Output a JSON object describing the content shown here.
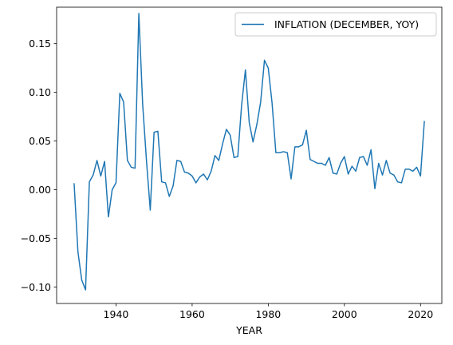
{
  "chart_data": {
    "type": "line",
    "xlabel": "YEAR",
    "ylabel": "",
    "title": "",
    "xlim": [
      1924.4,
      2025.6
    ],
    "ylim": [
      -0.117,
      0.1875
    ],
    "xticks": [
      1940,
      1960,
      1980,
      2000,
      2020
    ],
    "xtick_labels": [
      "1940",
      "1960",
      "1980",
      "2000",
      "2020"
    ],
    "yticks": [
      -0.1,
      -0.05,
      0.0,
      0.05,
      0.1,
      0.15
    ],
    "ytick_labels": [
      "−0.10",
      "−0.05",
      "0.00",
      "0.05",
      "0.10",
      "0.15"
    ],
    "grid": false,
    "legend_position": "top-right",
    "series": [
      {
        "name": "INFLATION (DECEMBER, YOY)",
        "color": "#1f77b4",
        "x": [
          1929,
          1930,
          1931,
          1932,
          1933,
          1934,
          1935,
          1936,
          1937,
          1938,
          1939,
          1940,
          1941,
          1942,
          1943,
          1944,
          1945,
          1946,
          1947,
          1948,
          1949,
          1950,
          1951,
          1952,
          1953,
          1954,
          1955,
          1956,
          1957,
          1958,
          1959,
          1960,
          1961,
          1962,
          1963,
          1964,
          1965,
          1966,
          1967,
          1968,
          1969,
          1970,
          1971,
          1972,
          1973,
          1974,
          1975,
          1976,
          1977,
          1978,
          1979,
          1980,
          1981,
          1982,
          1983,
          1984,
          1985,
          1986,
          1987,
          1988,
          1989,
          1990,
          1991,
          1992,
          1993,
          1994,
          1995,
          1996,
          1997,
          1998,
          1999,
          2000,
          2001,
          2002,
          2003,
          2004,
          2005,
          2006,
          2007,
          2008,
          2009,
          2010,
          2011,
          2012,
          2013,
          2014,
          2015,
          2016,
          2017,
          2018,
          2019,
          2020,
          2021
        ],
        "values": [
          0.006,
          -0.064,
          -0.093,
          -0.103,
          0.008,
          0.015,
          0.03,
          0.014,
          0.029,
          -0.028,
          0.0,
          0.007,
          0.099,
          0.09,
          0.03,
          0.023,
          0.022,
          0.181,
          0.088,
          0.03,
          -0.021,
          0.059,
          0.06,
          0.008,
          0.007,
          -0.007,
          0.004,
          0.03,
          0.029,
          0.018,
          0.017,
          0.014,
          0.007,
          0.013,
          0.016,
          0.01,
          0.019,
          0.035,
          0.03,
          0.047,
          0.062,
          0.056,
          0.033,
          0.034,
          0.087,
          0.123,
          0.069,
          0.049,
          0.067,
          0.09,
          0.133,
          0.125,
          0.089,
          0.038,
          0.038,
          0.039,
          0.038,
          0.011,
          0.044,
          0.044,
          0.046,
          0.061,
          0.031,
          0.029,
          0.027,
          0.027,
          0.025,
          0.033,
          0.017,
          0.016,
          0.027,
          0.034,
          0.016,
          0.024,
          0.019,
          0.033,
          0.034,
          0.025,
          0.041,
          0.001,
          0.027,
          0.015,
          0.03,
          0.017,
          0.015,
          0.008,
          0.007,
          0.021,
          0.021,
          0.019,
          0.023,
          0.014,
          0.07
        ]
      }
    ]
  }
}
